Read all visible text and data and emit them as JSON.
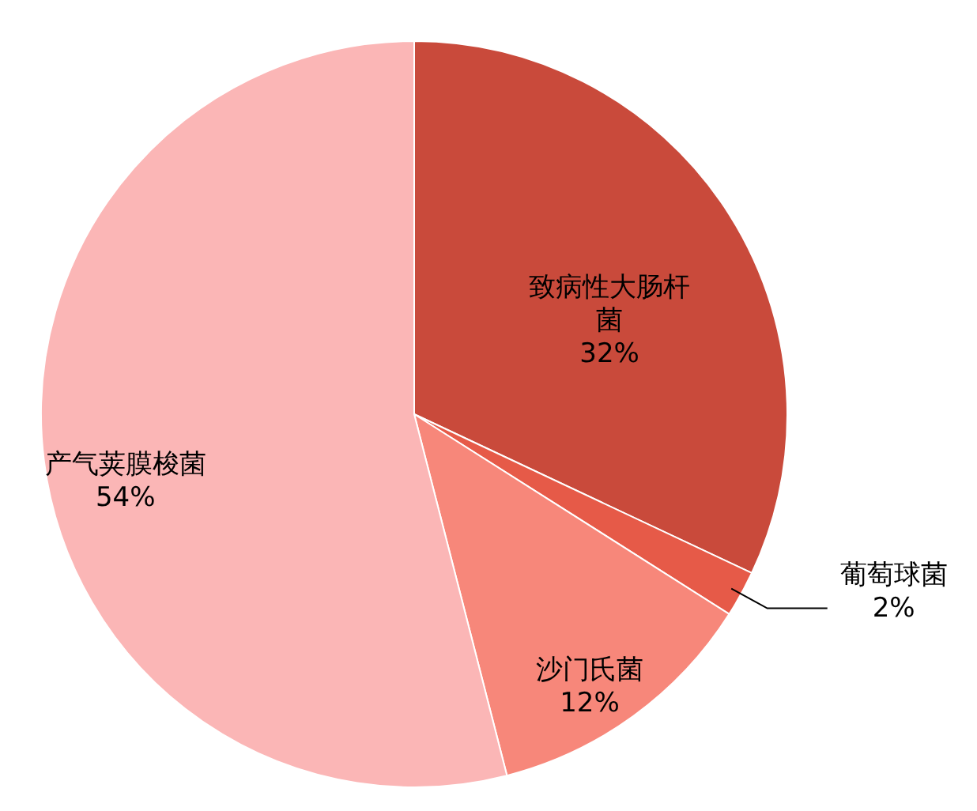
{
  "chart_data": {
    "type": "pie",
    "categories": [
      "致病性大肠杆菌",
      "葡萄球菌",
      "沙门氏菌",
      "产气荚膜梭菌"
    ],
    "values": [
      32,
      2,
      12,
      54
    ],
    "value_labels": [
      "32%",
      "2%",
      "12%",
      "54%"
    ],
    "colors": [
      "#c94a3b",
      "#e65a48",
      "#f7877a",
      "#fbb6b6"
    ]
  }
}
